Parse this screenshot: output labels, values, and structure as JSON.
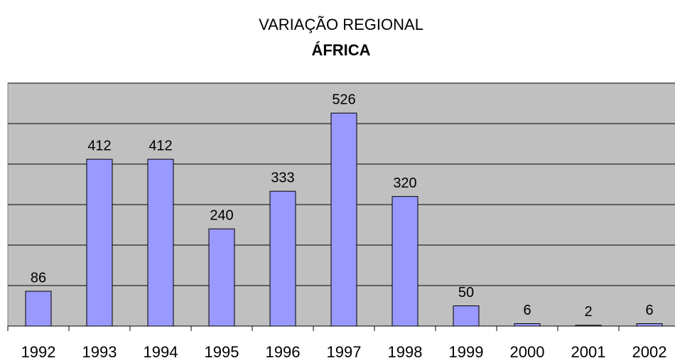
{
  "chart_data": {
    "type": "bar",
    "title": "VARIAÇÃO REGIONAL",
    "subtitle": "ÁFRICA",
    "categories": [
      "1992",
      "1993",
      "1994",
      "1995",
      "1996",
      "1997",
      "1998",
      "1999",
      "2000",
      "2001",
      "2002"
    ],
    "values": [
      86,
      412,
      412,
      240,
      333,
      526,
      320,
      50,
      6,
      2,
      6
    ],
    "color": "#9999ff",
    "ylim": [
      0,
      600
    ],
    "yticks": [
      0,
      100,
      200,
      300,
      400,
      500,
      600
    ],
    "grid": true
  }
}
